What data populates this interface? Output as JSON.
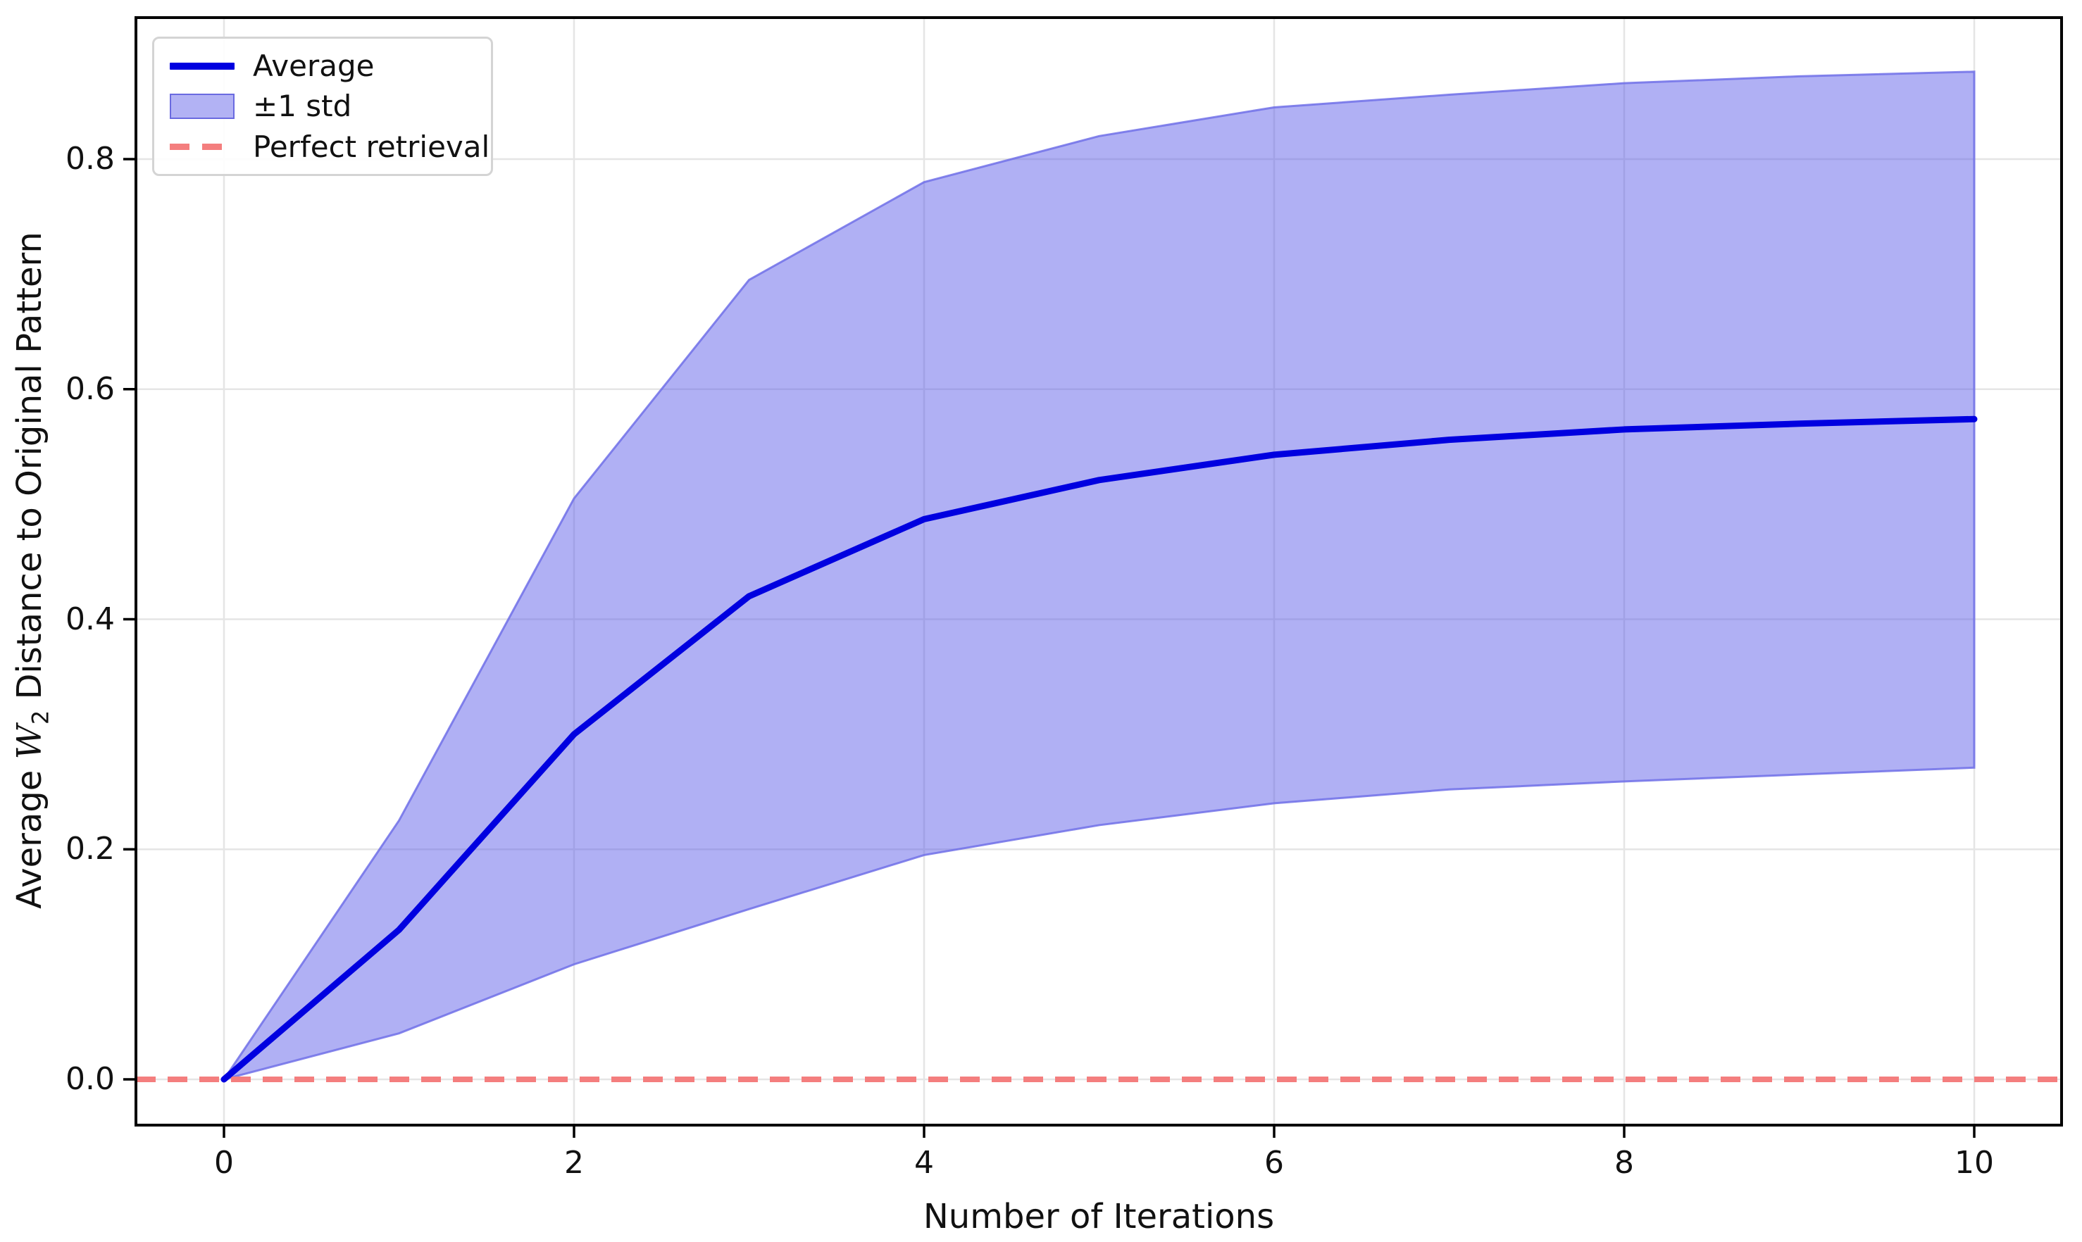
{
  "figure": {
    "xlabel": "Number of Iterations",
    "ylabel_prefix": "Average ",
    "ylabel_symbol": "W",
    "ylabel_subscript": "2",
    "ylabel_suffix": " Distance to Original Pattern"
  },
  "legend": {
    "average_label": "Average",
    "std_label": "±1 std",
    "perfect_label": "Perfect retrieval"
  },
  "chart_data": {
    "type": "line",
    "title": "",
    "xlabel": "Number of Iterations",
    "ylabel": "Average W2 Distance to Original Pattern",
    "x": [
      0,
      1,
      2,
      3,
      4,
      5,
      6,
      7,
      8,
      9,
      10
    ],
    "series": [
      {
        "name": "Average",
        "values": [
          0.0,
          0.13,
          0.3,
          0.42,
          0.487,
          0.521,
          0.543,
          0.556,
          0.565,
          0.57,
          0.574
        ],
        "color": "#0000e0",
        "style": "solid"
      },
      {
        "name": "+1 std (band upper)",
        "values": [
          0.0,
          0.225,
          0.505,
          0.695,
          0.78,
          0.82,
          0.845,
          0.856,
          0.866,
          0.872,
          0.876
        ],
        "color": "#b2b2f4",
        "style": "band-upper"
      },
      {
        "name": "-1 std (band lower)",
        "values": [
          0.0,
          0.04,
          0.1,
          0.148,
          0.195,
          0.221,
          0.24,
          0.252,
          0.259,
          0.265,
          0.271
        ],
        "color": "#b2b2f4",
        "style": "band-lower"
      }
    ],
    "reference_line": {
      "name": "Perfect retrieval",
      "y": 0.0,
      "color": "#f47e7e",
      "style": "dashed"
    },
    "band_fill_color": "#5050e6",
    "band_fill_opacity": 0.45,
    "band_edge_color": "#7070e8",
    "grid": true,
    "grid_color": "#e5e5e5",
    "legend_position": "upper left",
    "xlim": [
      -0.5,
      10.5
    ],
    "ylim": [
      -0.044,
      0.923
    ],
    "xticks": [
      0,
      2,
      4,
      6,
      8,
      10
    ],
    "xtick_labels": [
      "0",
      "2",
      "4",
      "6",
      "8",
      "10"
    ],
    "yticks": [
      0.0,
      0.2,
      0.4,
      0.6,
      0.8
    ],
    "ytick_labels": [
      "0.0",
      "0.2",
      "0.4",
      "0.6",
      "0.8"
    ]
  }
}
